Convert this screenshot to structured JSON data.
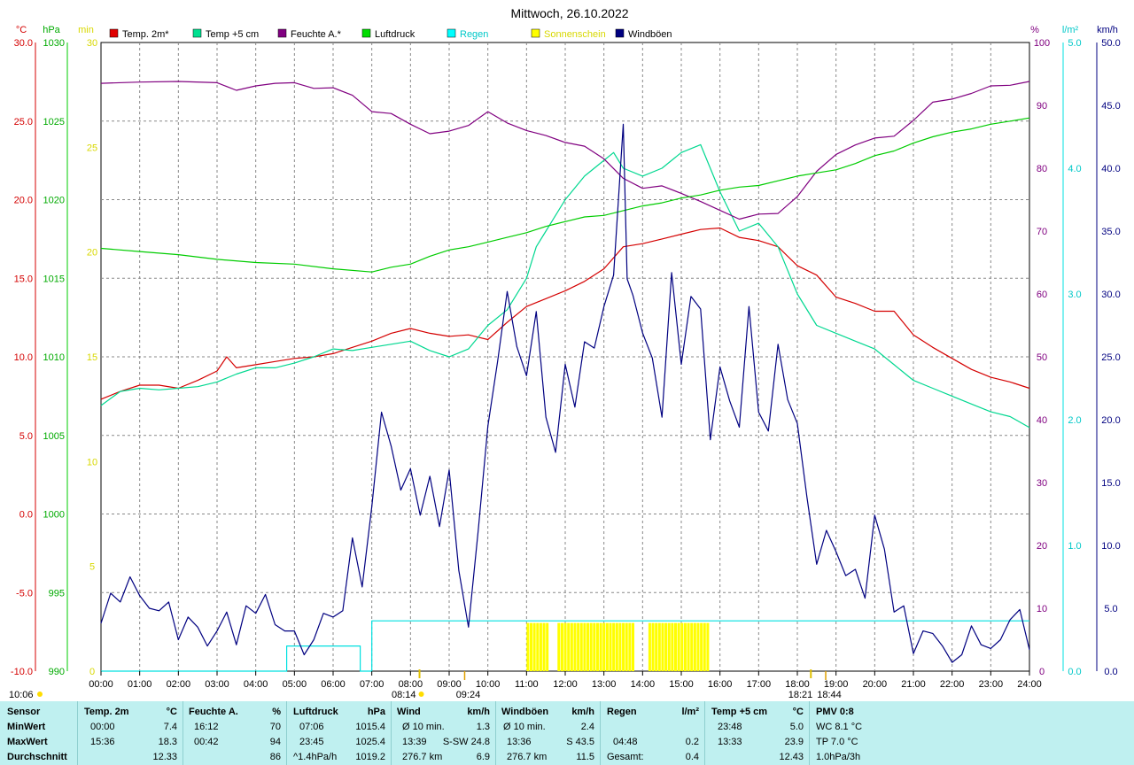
{
  "title": "Mittwoch, 26.10.2022",
  "colors": {
    "temp2m": "#d40000",
    "temp5cm": "#00d890",
    "feuchte": "#800080",
    "luftdruck": "#00cc00",
    "regen": "#00e0e0",
    "sonne": "#ffff00",
    "windboeen": "#000080",
    "grid": "#888888",
    "footer_bg": "#bff0f0"
  },
  "legend": [
    {
      "key": "temp2m",
      "label": "Temp. 2m*",
      "color": "#e00000"
    },
    {
      "key": "temp5cm",
      "label": "Temp +5 cm",
      "color": "#00e090"
    },
    {
      "key": "feuchte",
      "label": "Feuchte A.*",
      "color": "#800080"
    },
    {
      "key": "luftdruck",
      "label": "Luftdruck",
      "color": "#00dd00"
    },
    {
      "key": "regen",
      "label": "Regen",
      "color": "#00ffff"
    },
    {
      "key": "sonne",
      "label": "Sonnenschein",
      "color": "#ffff00"
    },
    {
      "key": "windboeen",
      "label": "Windböen",
      "color": "#000080"
    }
  ],
  "axes": {
    "temp": {
      "unit": "°C",
      "min": -10,
      "max": 30,
      "ticks": [
        "30.0",
        "25.0",
        "20.0",
        "15.0",
        "10.0",
        "5.0",
        "0.0",
        "-5.0",
        "-10.0"
      ]
    },
    "pressure": {
      "unit": "hPa",
      "min": 990,
      "max": 1030,
      "ticks": [
        "1030",
        "1025",
        "1020",
        "1015",
        "1010",
        "1005",
        "1000",
        "995",
        "990"
      ]
    },
    "sun_min": {
      "unit": "min",
      "min": 0,
      "max": 30,
      "ticks": [
        "30",
        "25",
        "20",
        "15",
        "10",
        "5",
        "0"
      ]
    },
    "humidity": {
      "unit": "%",
      "min": 0,
      "max": 100,
      "ticks": [
        "100",
        "90",
        "80",
        "70",
        "60",
        "50",
        "40",
        "30",
        "20",
        "10",
        "0"
      ]
    },
    "rain": {
      "unit": "l/m²",
      "min": 0,
      "max": 5,
      "ticks": [
        "5.0",
        "4.0",
        "3.0",
        "2.0",
        "1.0",
        "0.0"
      ]
    },
    "wind": {
      "unit": "km/h",
      "min": 0,
      "max": 50,
      "ticks": [
        "50.0",
        "45.0",
        "40.0",
        "35.0",
        "30.0",
        "25.0",
        "20.0",
        "15.0",
        "10.0",
        "5.0",
        "0.0"
      ]
    },
    "x_ticks": [
      "00:00",
      "01:00",
      "02:00",
      "03:00",
      "04:00",
      "05:00",
      "06:00",
      "07:00",
      "08:00",
      "09:00",
      "10:00",
      "11:00",
      "12:00",
      "13:00",
      "14:00",
      "15:00",
      "16:00",
      "17:00",
      "18:00",
      "19:00",
      "20:00",
      "21:00",
      "22:00",
      "23:00",
      "24:00"
    ]
  },
  "markers": {
    "sunrise": "08:14",
    "sunset": "18:21",
    "civil_start": "09:24",
    "civil_end": "18:44",
    "corner": "10:06"
  },
  "chart_data": {
    "type": "line",
    "x_unit": "hour",
    "series": [
      {
        "name": "Temp. 2m*",
        "axis": "temp",
        "x": [
          0,
          0.5,
          1,
          1.5,
          2,
          2.5,
          3,
          3.25,
          3.5,
          4,
          4.5,
          5,
          5.5,
          6,
          6.5,
          7,
          7.5,
          8,
          8.5,
          9,
          9.5,
          10,
          10.5,
          11,
          11.5,
          12,
          12.5,
          13,
          13.5,
          14,
          14.5,
          15,
          15.5,
          16,
          16.5,
          17,
          17.5,
          18,
          18.5,
          19,
          19.5,
          20,
          20.5,
          21,
          21.5,
          22,
          22.5,
          23,
          23.5,
          24
        ],
        "y": [
          7.3,
          7.8,
          8.2,
          8.2,
          8.0,
          8.5,
          9.1,
          10.0,
          9.3,
          9.5,
          9.7,
          9.9,
          10.0,
          10.2,
          10.6,
          11.0,
          11.5,
          11.8,
          11.5,
          11.3,
          11.4,
          11.1,
          12.2,
          13.2,
          13.7,
          14.2,
          14.8,
          15.6,
          17.0,
          17.2,
          17.5,
          17.8,
          18.1,
          18.2,
          17.6,
          17.4,
          17.0,
          15.8,
          15.2,
          13.8,
          13.4,
          12.9,
          12.9,
          11.4,
          10.6,
          9.9,
          9.2,
          8.7,
          8.4,
          8.0
        ]
      },
      {
        "name": "Temp +5 cm",
        "axis": "temp",
        "x": [
          0,
          0.5,
          1,
          1.5,
          2,
          2.5,
          3,
          3.5,
          4,
          4.5,
          5,
          5.5,
          6,
          6.5,
          7,
          7.5,
          8,
          8.5,
          9,
          9.5,
          10,
          10.5,
          11,
          11.25,
          11.5,
          12,
          12.5,
          13,
          13.25,
          13.5,
          14,
          14.5,
          15,
          15.5,
          16,
          16.5,
          17,
          17.5,
          18,
          18.5,
          19,
          19.5,
          20,
          20.5,
          21,
          21.5,
          22,
          22.5,
          23,
          23.5,
          24
        ],
        "y": [
          6.9,
          7.8,
          8.0,
          7.9,
          8.0,
          8.1,
          8.4,
          8.9,
          9.3,
          9.3,
          9.6,
          10.0,
          10.5,
          10.4,
          10.6,
          10.8,
          11.0,
          10.4,
          10.0,
          10.5,
          12.0,
          13.0,
          15.0,
          17.0,
          18.0,
          20.0,
          21.5,
          22.5,
          23.0,
          22.0,
          21.5,
          22.0,
          23.0,
          23.5,
          20.5,
          18.0,
          18.5,
          17.0,
          14.0,
          12.0,
          11.5,
          11.0,
          10.5,
          9.5,
          8.5,
          8.0,
          7.5,
          7.0,
          6.5,
          6.2,
          5.5
        ]
      },
      {
        "name": "Feuchte A.*",
        "axis": "humidity",
        "x": [
          0,
          1,
          2,
          3,
          3.5,
          4,
          4.5,
          5,
          5.5,
          6,
          6.5,
          7,
          7.5,
          8,
          8.5,
          9,
          9.5,
          10,
          10.5,
          11,
          11.5,
          12,
          12.5,
          13,
          13.5,
          14,
          14.5,
          15,
          15.5,
          16,
          16.5,
          17,
          17.5,
          18,
          18.5,
          19,
          19.5,
          20,
          20.5,
          21,
          21.5,
          22,
          22.5,
          23,
          23.5,
          24
        ],
        "y": [
          93.5,
          93.7,
          93.8,
          93.6,
          92.4,
          93.1,
          93.5,
          93.6,
          92.7,
          92.8,
          91.6,
          89.0,
          88.7,
          87.0,
          85.5,
          85.9,
          86.8,
          89.0,
          87.2,
          86.0,
          85.2,
          84.1,
          83.5,
          81.5,
          78.4,
          76.8,
          77.2,
          76.0,
          74.7,
          73.3,
          71.9,
          72.7,
          72.8,
          75.5,
          79.5,
          82.2,
          83.7,
          84.8,
          85.1,
          87.6,
          90.5,
          91.0,
          91.9,
          93.1,
          93.2,
          93.8
        ]
      },
      {
        "name": "Luftdruck",
        "axis": "pressure",
        "x": [
          0,
          1,
          2,
          3,
          4,
          5,
          6,
          7,
          7.5,
          8,
          8.5,
          9,
          9.5,
          10,
          10.5,
          11,
          11.5,
          12,
          12.5,
          13,
          13.5,
          14,
          14.5,
          15,
          15.5,
          16,
          16.5,
          17,
          17.5,
          18,
          18.5,
          19,
          19.5,
          20,
          20.5,
          21,
          21.5,
          22,
          22.5,
          23,
          23.5,
          24
        ],
        "y": [
          1016.9,
          1016.7,
          1016.5,
          1016.2,
          1016.0,
          1015.9,
          1015.6,
          1015.4,
          1015.7,
          1015.9,
          1016.4,
          1016.8,
          1017.0,
          1017.3,
          1017.6,
          1017.9,
          1018.3,
          1018.6,
          1018.9,
          1019.0,
          1019.3,
          1019.6,
          1019.8,
          1020.1,
          1020.3,
          1020.6,
          1020.8,
          1020.9,
          1021.2,
          1021.5,
          1021.7,
          1021.9,
          1022.3,
          1022.8,
          1023.1,
          1023.6,
          1024.0,
          1024.3,
          1024.5,
          1024.8,
          1025.0,
          1025.2
        ]
      },
      {
        "name": "Regen",
        "axis": "rain",
        "x": [
          0,
          4.8,
          4.8,
          6.7,
          6.7,
          7.0,
          7.0,
          24
        ],
        "y": [
          0,
          0,
          0.2,
          0.2,
          0,
          0,
          0.4,
          0.4
        ]
      },
      {
        "name": "Windböen",
        "axis": "wind",
        "x": [
          0,
          0.25,
          0.5,
          0.75,
          1,
          1.25,
          1.5,
          1.75,
          2,
          2.25,
          2.5,
          2.75,
          3,
          3.25,
          3.5,
          3.75,
          4,
          4.25,
          4.5,
          4.75,
          5,
          5.25,
          5.5,
          5.75,
          6,
          6.25,
          6.5,
          6.75,
          7,
          7.25,
          7.5,
          7.75,
          8,
          8.25,
          8.5,
          8.75,
          9,
          9.25,
          9.5,
          9.75,
          10,
          10.25,
          10.5,
          10.75,
          11,
          11.25,
          11.5,
          11.75,
          12,
          12.25,
          12.5,
          12.75,
          13,
          13.25,
          13.5,
          13.6,
          13.75,
          14,
          14.25,
          14.5,
          14.75,
          15,
          15.25,
          15.5,
          15.75,
          16,
          16.25,
          16.5,
          16.75,
          17,
          17.25,
          17.5,
          17.75,
          18,
          18.25,
          18.5,
          18.75,
          19,
          19.25,
          19.5,
          19.75,
          20,
          20.25,
          20.5,
          20.75,
          21,
          21.25,
          21.5,
          21.75,
          22,
          22.25,
          22.5,
          22.75,
          23,
          23.25,
          23.5,
          23.75,
          24
        ],
        "y": [
          3.8,
          6.2,
          5.5,
          7.5,
          6.0,
          5.0,
          4.8,
          5.5,
          2.5,
          4.3,
          3.5,
          2.0,
          3.2,
          4.7,
          2.1,
          5.2,
          4.6,
          6.1,
          3.7,
          3.2,
          3.2,
          1.3,
          2.5,
          4.6,
          4.3,
          4.8,
          10.6,
          6.7,
          13.1,
          20.6,
          17.9,
          14.4,
          16.1,
          12.4,
          15.5,
          11.5,
          16.0,
          8.0,
          3.5,
          11.2,
          19.5,
          24.6,
          30.2,
          25.8,
          23.5,
          28.6,
          20.2,
          17.4,
          24.4,
          21.0,
          26.2,
          25.7,
          29.0,
          31.5,
          43.5,
          31.2,
          29.9,
          26.9,
          24.9,
          20.2,
          31.7,
          24.4,
          29.8,
          28.8,
          18.4,
          24.2,
          21.5,
          19.4,
          29.0,
          20.6,
          19.1,
          26.0,
          21.6,
          19.7,
          13.8,
          8.5,
          11.2,
          9.5,
          7.6,
          8.1,
          5.8,
          12.4,
          9.7,
          4.7,
          5.2,
          1.4,
          3.2,
          3.0,
          2.0,
          0.7,
          1.3,
          3.6,
          2.1,
          1.8,
          2.5,
          4.1,
          4.9,
          1.7
        ]
      },
      {
        "name": "Sonnenschein",
        "axis": "sun_min",
        "type": "bar",
        "intervals": [
          [
            11.0,
            11.55
          ],
          [
            11.8,
            13.75
          ],
          [
            14.15,
            15.7
          ]
        ],
        "value_min": 2.3
      }
    ]
  },
  "footer": {
    "row_labels": {
      "sensor": "Sensor",
      "min": "MinWert",
      "max": "MaxWert",
      "avg": "Durchschnitt"
    },
    "temp2m": {
      "name": "Temp. 2m",
      "unit": "°C",
      "min_time": "00:00",
      "min_val": "7.4",
      "max_time": "15:36",
      "max_val": "18.3",
      "avg": "12.33"
    },
    "feuchte": {
      "name": "Feuchte A.",
      "unit": "%",
      "min_time": "16:12",
      "min_val": "70",
      "max_time": "00:42",
      "max_val": "94",
      "avg": "86"
    },
    "luftdruck": {
      "name": "Luftdruck",
      "unit": "hPa",
      "min_time": "07:06",
      "min_val": "1015.4",
      "max_time": "23:45",
      "max_val": "1025.4",
      "avg_label": "^1.4hPa/h",
      "avg": "1019.2"
    },
    "wind": {
      "name": "Wind",
      "unit": "km/h",
      "min_label": "Ø 10 min.",
      "min_val": "1.3",
      "max_time": "13:39",
      "max_dir": "S-SW 24.8",
      "avg_label": "276.7 km",
      "avg": "6.9"
    },
    "windboeen": {
      "name": "Windböen",
      "unit": "km/h",
      "min_label": "Ø 10 min.",
      "min_val": "2.4",
      "max_time": "13:36",
      "max_dir": "S 43.5",
      "avg_label": "276.7 km",
      "avg": "11.5"
    },
    "regen": {
      "name": "Regen",
      "unit": "l/m²",
      "max_time": "04:48",
      "max_val": "0.2",
      "avg_label": "Gesamt:",
      "avg": "0.4"
    },
    "temp5cm": {
      "name": "Temp +5 cm",
      "unit": "°C",
      "min_time": "23:48",
      "min_val": "5.0",
      "max_time": "13:33",
      "max_val": "23.9",
      "avg": "12.43"
    },
    "pmv": {
      "name": "PMV 0:8",
      "min": "WC 8.1 °C",
      "max": "TP 7.0 °C",
      "avg": "1.0hPa/3h"
    }
  }
}
